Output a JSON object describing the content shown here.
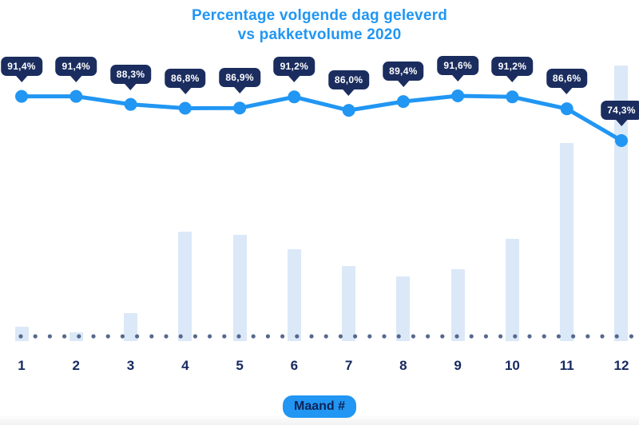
{
  "title": {
    "line1": "Percentage volgende dag geleverd",
    "line2": "vs pakketvolume 2020"
  },
  "x_axis": {
    "label": "Maand #",
    "ticks": [
      "1",
      "2",
      "3",
      "4",
      "5",
      "6",
      "7",
      "8",
      "9",
      "10",
      "11",
      "12"
    ]
  },
  "chart_data": {
    "type": "combo-line-bar",
    "title": "Percentage volgende dag geleverd vs pakketvolume 2020",
    "categories": [
      "1",
      "2",
      "3",
      "4",
      "5",
      "6",
      "7",
      "8",
      "9",
      "10",
      "11",
      "12"
    ],
    "xlabel": "Maand #",
    "ylabel": "",
    "legend": "none",
    "grid": "dotted-baseline-only",
    "series": [
      {
        "name": "Percentage volgende dag geleverd",
        "type": "line",
        "unit": "%",
        "values": [
          91.4,
          91.4,
          88.3,
          86.8,
          86.9,
          91.2,
          86.0,
          89.4,
          91.6,
          91.2,
          86.6,
          74.3
        ],
        "labels": [
          "91,4%",
          "91,4%",
          "88,3%",
          "86,8%",
          "86,9%",
          "91,2%",
          "86,0%",
          "89,4%",
          "91,6%",
          "91,2%",
          "86,6%",
          "74,3%"
        ],
        "ylim": [
          70,
          95
        ]
      },
      {
        "name": "Pakketvolume 2020",
        "type": "bar",
        "unit": "relative volume, % of max (no value axis shown)",
        "values": [
          5.2,
          3.2,
          10.1,
          39.7,
          38.6,
          33.3,
          27.2,
          23.5,
          26.1,
          37.1,
          71.9,
          100
        ]
      }
    ],
    "colors": {
      "line_blue": "#2196F3",
      "marker_blue": "#2196F3",
      "badge_navy": "#1B2D5F",
      "badge_text": "#FFFFFF",
      "bar_light_blue": "#DBE8F7",
      "baseline_dot": "#56688E",
      "tick_label_navy": "#16295F",
      "title_blue": "#2196F3",
      "pill_bg": "#2196F3",
      "pill_text": "#0E2356"
    }
  }
}
